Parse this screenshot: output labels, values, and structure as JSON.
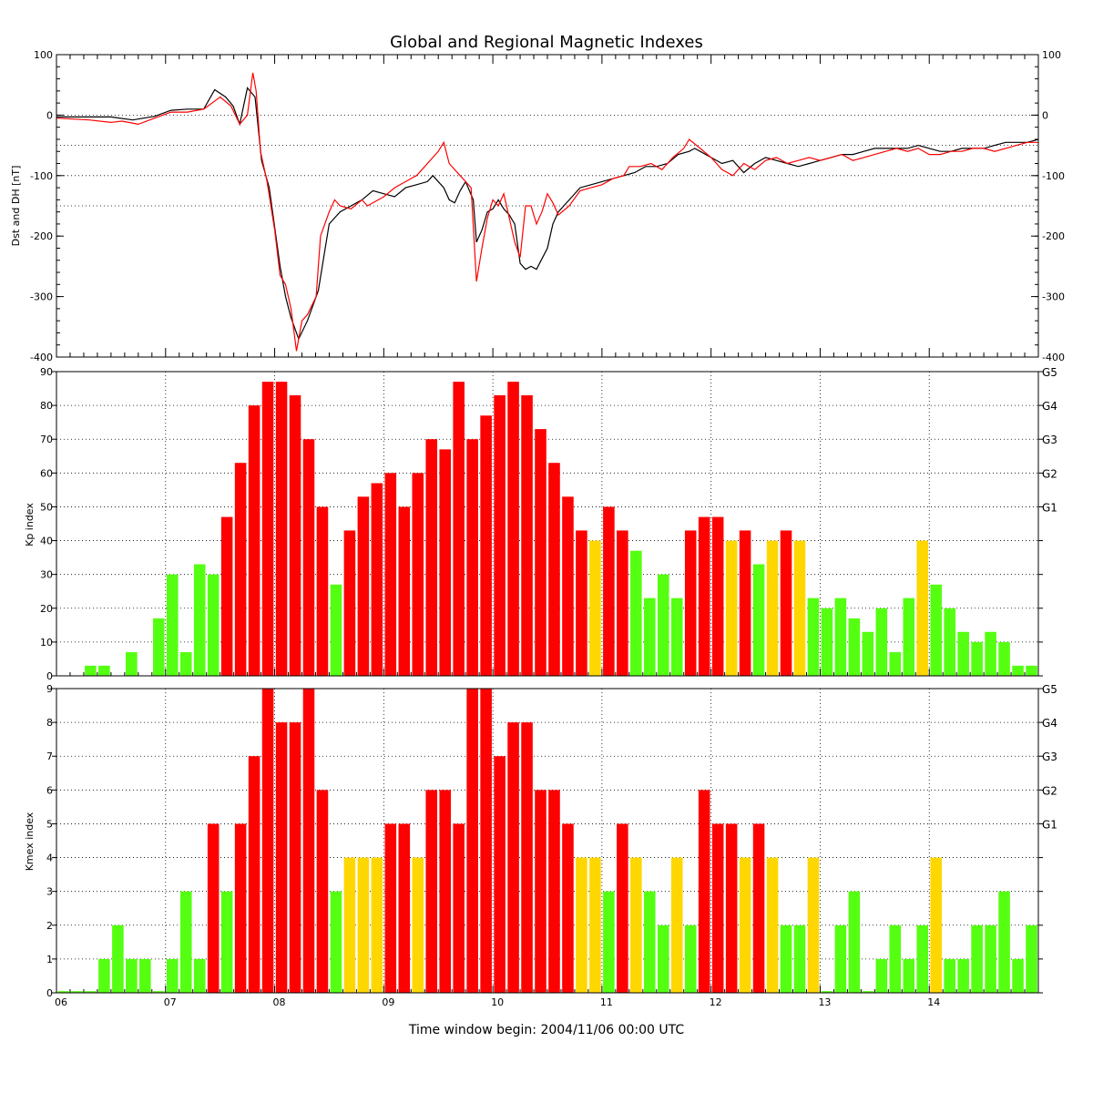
{
  "title": "Global and Regional Magnetic Indexes",
  "caption": "Time window begin: 2004/11/06 00:00 UTC",
  "colors": {
    "green": "#55ff11",
    "yellow": "#ffd700",
    "red": "#ff0000",
    "black": "#000000",
    "dst_line": "#000000",
    "dh_line": "#ff0000"
  },
  "chart_data": [
    {
      "type": "line",
      "panel": "dst",
      "ylabel": "Dst and DH [nT]",
      "ylim": [
        -400,
        100
      ],
      "yticks": [
        100,
        0,
        -100,
        -200,
        -300,
        -400
      ],
      "grid_y": [
        0,
        -50,
        -100,
        -150
      ],
      "xlim": [
        0,
        9
      ],
      "x_unit": "days since 2004/11/06 00:00 UTC",
      "series": [
        {
          "name": "Dst",
          "color": "#000000",
          "points": [
            [
              0,
              -3
            ],
            [
              0.5,
              -3
            ],
            [
              0.7,
              -8
            ],
            [
              0.9,
              -2
            ],
            [
              1.05,
              8
            ],
            [
              1.2,
              10
            ],
            [
              1.35,
              10
            ],
            [
              1.45,
              42
            ],
            [
              1.55,
              30
            ],
            [
              1.62,
              15
            ],
            [
              1.68,
              -15
            ],
            [
              1.75,
              45
            ],
            [
              1.82,
              30
            ],
            [
              1.88,
              -75
            ],
            [
              1.95,
              -120
            ],
            [
              2.05,
              -250
            ],
            [
              2.1,
              -300
            ],
            [
              2.15,
              -335
            ],
            [
              2.22,
              -370
            ],
            [
              2.3,
              -340
            ],
            [
              2.4,
              -290
            ],
            [
              2.5,
              -180
            ],
            [
              2.6,
              -160
            ],
            [
              2.7,
              -150
            ],
            [
              2.8,
              -140
            ],
            [
              2.9,
              -125
            ],
            [
              3.0,
              -130
            ],
            [
              3.1,
              -135
            ],
            [
              3.2,
              -120
            ],
            [
              3.3,
              -115
            ],
            [
              3.4,
              -110
            ],
            [
              3.45,
              -100
            ],
            [
              3.55,
              -120
            ],
            [
              3.6,
              -140
            ],
            [
              3.65,
              -145
            ],
            [
              3.7,
              -125
            ],
            [
              3.75,
              -110
            ],
            [
              3.82,
              -140
            ],
            [
              3.85,
              -210
            ],
            [
              3.9,
              -190
            ],
            [
              3.95,
              -160
            ],
            [
              4.0,
              -155
            ],
            [
              4.05,
              -140
            ],
            [
              4.1,
              -155
            ],
            [
              4.15,
              -165
            ],
            [
              4.2,
              -180
            ],
            [
              4.25,
              -245
            ],
            [
              4.3,
              -255
            ],
            [
              4.35,
              -250
            ],
            [
              4.4,
              -255
            ],
            [
              4.5,
              -220
            ],
            [
              4.55,
              -180
            ],
            [
              4.6,
              -160
            ],
            [
              4.7,
              -140
            ],
            [
              4.8,
              -120
            ],
            [
              4.9,
              -115
            ],
            [
              5.0,
              -110
            ],
            [
              5.1,
              -105
            ],
            [
              5.2,
              -100
            ],
            [
              5.3,
              -95
            ],
            [
              5.4,
              -85
            ],
            [
              5.5,
              -85
            ],
            [
              5.6,
              -80
            ],
            [
              5.7,
              -65
            ],
            [
              5.8,
              -60
            ],
            [
              5.85,
              -55
            ],
            [
              5.9,
              -60
            ],
            [
              6.0,
              -70
            ],
            [
              6.1,
              -80
            ],
            [
              6.2,
              -75
            ],
            [
              6.3,
              -95
            ],
            [
              6.4,
              -80
            ],
            [
              6.5,
              -70
            ],
            [
              6.6,
              -75
            ],
            [
              6.7,
              -80
            ],
            [
              6.8,
              -85
            ],
            [
              6.9,
              -80
            ],
            [
              7.0,
              -75
            ],
            [
              7.1,
              -70
            ],
            [
              7.2,
              -65
            ],
            [
              7.3,
              -65
            ],
            [
              7.4,
              -60
            ],
            [
              7.5,
              -55
            ],
            [
              7.6,
              -55
            ],
            [
              7.7,
              -55
            ],
            [
              7.8,
              -55
            ],
            [
              7.9,
              -50
            ],
            [
              8.0,
              -55
            ],
            [
              8.1,
              -60
            ],
            [
              8.2,
              -60
            ],
            [
              8.3,
              -55
            ],
            [
              8.4,
              -55
            ],
            [
              8.5,
              -55
            ],
            [
              8.6,
              -50
            ],
            [
              8.7,
              -45
            ],
            [
              8.8,
              -45
            ],
            [
              8.9,
              -45
            ],
            [
              9.0,
              -40
            ]
          ]
        },
        {
          "name": "DH",
          "color": "#ff0000",
          "points": [
            [
              0,
              -5
            ],
            [
              0.3,
              -8
            ],
            [
              0.5,
              -12
            ],
            [
              0.6,
              -10
            ],
            [
              0.75,
              -15
            ],
            [
              0.9,
              -5
            ],
            [
              1.05,
              5
            ],
            [
              1.2,
              5
            ],
            [
              1.35,
              10
            ],
            [
              1.5,
              30
            ],
            [
              1.6,
              15
            ],
            [
              1.68,
              -15
            ],
            [
              1.75,
              0
            ],
            [
              1.8,
              70
            ],
            [
              1.83,
              40
            ],
            [
              1.87,
              -60
            ],
            [
              1.93,
              -110
            ],
            [
              2.0,
              -190
            ],
            [
              2.05,
              -265
            ],
            [
              2.1,
              -280
            ],
            [
              2.15,
              -320
            ],
            [
              2.2,
              -390
            ],
            [
              2.25,
              -340
            ],
            [
              2.3,
              -330
            ],
            [
              2.38,
              -300
            ],
            [
              2.42,
              -200
            ],
            [
              2.5,
              -160
            ],
            [
              2.55,
              -140
            ],
            [
              2.6,
              -150
            ],
            [
              2.7,
              -155
            ],
            [
              2.8,
              -140
            ],
            [
              2.85,
              -150
            ],
            [
              2.95,
              -140
            ],
            [
              3.0,
              -135
            ],
            [
              3.1,
              -120
            ],
            [
              3.2,
              -110
            ],
            [
              3.3,
              -100
            ],
            [
              3.35,
              -90
            ],
            [
              3.45,
              -70
            ],
            [
              3.5,
              -60
            ],
            [
              3.55,
              -45
            ],
            [
              3.6,
              -80
            ],
            [
              3.7,
              -100
            ],
            [
              3.75,
              -110
            ],
            [
              3.8,
              -120
            ],
            [
              3.85,
              -275
            ],
            [
              3.9,
              -220
            ],
            [
              3.95,
              -170
            ],
            [
              4.0,
              -140
            ],
            [
              4.05,
              -150
            ],
            [
              4.1,
              -130
            ],
            [
              4.15,
              -170
            ],
            [
              4.2,
              -210
            ],
            [
              4.25,
              -235
            ],
            [
              4.3,
              -150
            ],
            [
              4.35,
              -150
            ],
            [
              4.4,
              -180
            ],
            [
              4.45,
              -160
            ],
            [
              4.5,
              -130
            ],
            [
              4.55,
              -145
            ],
            [
              4.6,
              -165
            ],
            [
              4.7,
              -150
            ],
            [
              4.8,
              -125
            ],
            [
              4.9,
              -120
            ],
            [
              5.0,
              -115
            ],
            [
              5.1,
              -105
            ],
            [
              5.2,
              -100
            ],
            [
              5.25,
              -85
            ],
            [
              5.35,
              -85
            ],
            [
              5.45,
              -80
            ],
            [
              5.55,
              -90
            ],
            [
              5.65,
              -70
            ],
            [
              5.75,
              -55
            ],
            [
              5.8,
              -40
            ],
            [
              5.9,
              -55
            ],
            [
              6.0,
              -70
            ],
            [
              6.1,
              -90
            ],
            [
              6.2,
              -100
            ],
            [
              6.3,
              -80
            ],
            [
              6.4,
              -90
            ],
            [
              6.5,
              -75
            ],
            [
              6.6,
              -70
            ],
            [
              6.7,
              -80
            ],
            [
              6.8,
              -75
            ],
            [
              6.9,
              -70
            ],
            [
              7.0,
              -75
            ],
            [
              7.1,
              -70
            ],
            [
              7.2,
              -65
            ],
            [
              7.3,
              -75
            ],
            [
              7.4,
              -70
            ],
            [
              7.5,
              -65
            ],
            [
              7.6,
              -60
            ],
            [
              7.7,
              -55
            ],
            [
              7.8,
              -60
            ],
            [
              7.9,
              -55
            ],
            [
              8.0,
              -65
            ],
            [
              8.1,
              -65
            ],
            [
              8.2,
              -60
            ],
            [
              8.3,
              -60
            ],
            [
              8.4,
              -55
            ],
            [
              8.5,
              -55
            ],
            [
              8.6,
              -60
            ],
            [
              8.7,
              -55
            ],
            [
              8.8,
              -50
            ],
            [
              8.9,
              -45
            ],
            [
              9.0,
              -45
            ]
          ]
        }
      ]
    },
    {
      "type": "bar",
      "panel": "kp",
      "ylabel": "Kp index",
      "ylim": [
        0,
        90
      ],
      "yticks": [
        0,
        10,
        20,
        30,
        40,
        50,
        60,
        70,
        80,
        90
      ],
      "right_labels": [
        {
          "y": 50,
          "text": "G1"
        },
        {
          "y": 60,
          "text": "G2"
        },
        {
          "y": 70,
          "text": "G3"
        },
        {
          "y": 80,
          "text": "G4"
        },
        {
          "y": 90,
          "text": "G5"
        }
      ],
      "bin_hours": 3,
      "values": [
        0,
        0,
        3,
        3,
        0,
        7,
        0,
        17,
        30,
        7,
        33,
        30,
        47,
        63,
        80,
        87,
        87,
        83,
        70,
        50,
        27,
        43,
        53,
        57,
        60,
        50,
        60,
        70,
        67,
        87,
        70,
        77,
        83,
        87,
        83,
        73,
        63,
        53,
        43,
        40,
        50,
        43,
        37,
        23,
        30,
        23,
        43,
        47,
        47,
        40,
        43,
        33,
        40,
        43,
        40,
        23,
        20,
        23,
        17,
        13,
        20,
        7,
        23,
        40,
        27,
        20,
        13,
        10,
        13,
        10,
        3,
        3
      ],
      "bar_colors": [
        "g",
        "g",
        "g",
        "g",
        "g",
        "g",
        "g",
        "g",
        "g",
        "g",
        "g",
        "g",
        "r",
        "r",
        "r",
        "r",
        "r",
        "r",
        "r",
        "r",
        "g",
        "r",
        "r",
        "r",
        "r",
        "r",
        "r",
        "r",
        "r",
        "r",
        "r",
        "r",
        "r",
        "r",
        "r",
        "r",
        "r",
        "r",
        "r",
        "y",
        "r",
        "r",
        "g",
        "g",
        "g",
        "g",
        "r",
        "r",
        "r",
        "y",
        "r",
        "g",
        "y",
        "r",
        "y",
        "g",
        "g",
        "g",
        "g",
        "g",
        "g",
        "g",
        "g",
        "y",
        "g",
        "g",
        "g",
        "g",
        "g",
        "g",
        "g",
        "g"
      ]
    },
    {
      "type": "bar",
      "panel": "kmex",
      "ylabel": "Kmex index",
      "ylim": [
        0,
        9
      ],
      "yticks": [
        0,
        1,
        2,
        3,
        4,
        5,
        6,
        7,
        8,
        9
      ],
      "right_labels": [
        {
          "y": 5,
          "text": "G1"
        },
        {
          "y": 6,
          "text": "G2"
        },
        {
          "y": 7,
          "text": "G3"
        },
        {
          "y": 8,
          "text": "G4"
        },
        {
          "y": 9,
          "text": "G5"
        }
      ],
      "bin_hours": 3,
      "values": [
        0.05,
        0.05,
        0.05,
        1,
        2,
        1,
        1,
        0.05,
        1,
        3,
        1,
        5,
        3,
        5,
        7,
        9,
        8,
        8,
        9,
        6,
        3,
        4,
        4,
        4,
        5,
        5,
        4,
        6,
        6,
        5,
        9,
        9,
        7,
        8,
        8,
        6,
        6,
        5,
        4,
        4,
        3,
        5,
        4,
        3,
        2,
        4,
        2,
        6,
        5,
        5,
        4,
        5,
        4,
        2,
        2,
        4,
        0.05,
        2,
        3,
        0.05,
        1,
        2,
        1,
        2,
        4,
        1,
        1,
        2,
        2,
        3,
        1,
        2
      ],
      "bar_colors": [
        "g",
        "g",
        "g",
        "g",
        "g",
        "g",
        "g",
        "g",
        "g",
        "g",
        "g",
        "r",
        "g",
        "r",
        "r",
        "r",
        "r",
        "r",
        "r",
        "r",
        "g",
        "y",
        "y",
        "y",
        "r",
        "r",
        "y",
        "r",
        "r",
        "r",
        "r",
        "r",
        "r",
        "r",
        "r",
        "r",
        "r",
        "r",
        "y",
        "y",
        "g",
        "r",
        "y",
        "g",
        "g",
        "y",
        "g",
        "r",
        "r",
        "r",
        "y",
        "r",
        "y",
        "g",
        "g",
        "y",
        "g",
        "g",
        "g",
        "g",
        "g",
        "g",
        "g",
        "g",
        "y",
        "g",
        "g",
        "g",
        "g",
        "g",
        "g",
        "g"
      ]
    }
  ],
  "x_axis": {
    "day_labels": [
      "06",
      "07",
      "08",
      "09",
      "10",
      "11",
      "12",
      "13",
      "14"
    ]
  }
}
